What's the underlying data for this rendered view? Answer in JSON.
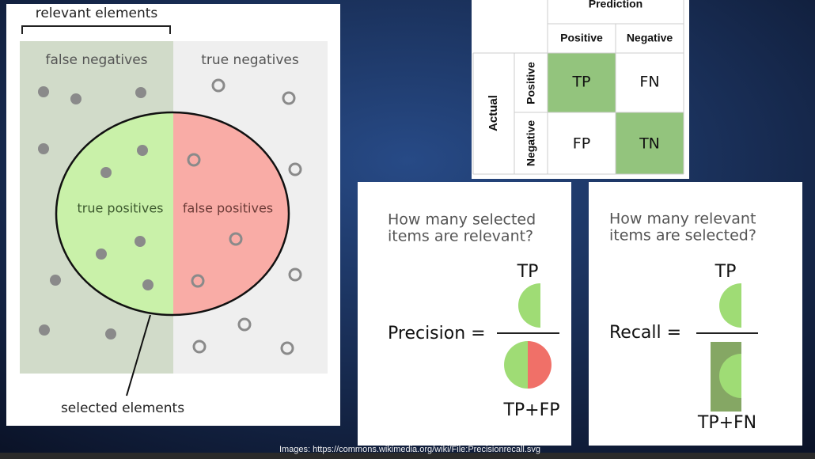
{
  "left_diagram": {
    "bracket_label": "relevant elements",
    "false_negatives": "false negatives",
    "true_negatives": "true negatives",
    "true_positives": "true positives",
    "false_positives": "false positives",
    "circle_label": "selected elements"
  },
  "confusion_matrix": {
    "header": "Prediction",
    "predicted": [
      "Positive",
      "Negative"
    ],
    "actual_label": "Actual",
    "actual": [
      "Positive",
      "Negative"
    ],
    "cells": [
      [
        "TP",
        "FN"
      ],
      [
        "FP",
        "TN"
      ]
    ]
  },
  "precision": {
    "question": [
      "How many selected",
      "items are relevant?"
    ],
    "label": "Precision =",
    "numerator": "TP",
    "denominator": "TP+FP"
  },
  "recall": {
    "question": [
      "How many relevant",
      "items are selected?"
    ],
    "label": "Recall =",
    "numerator": "TP",
    "denominator": "TP+FN"
  },
  "footer": "Images: https://commons.wikimedia.org/wiki/File:Precisionrecall.svg"
}
